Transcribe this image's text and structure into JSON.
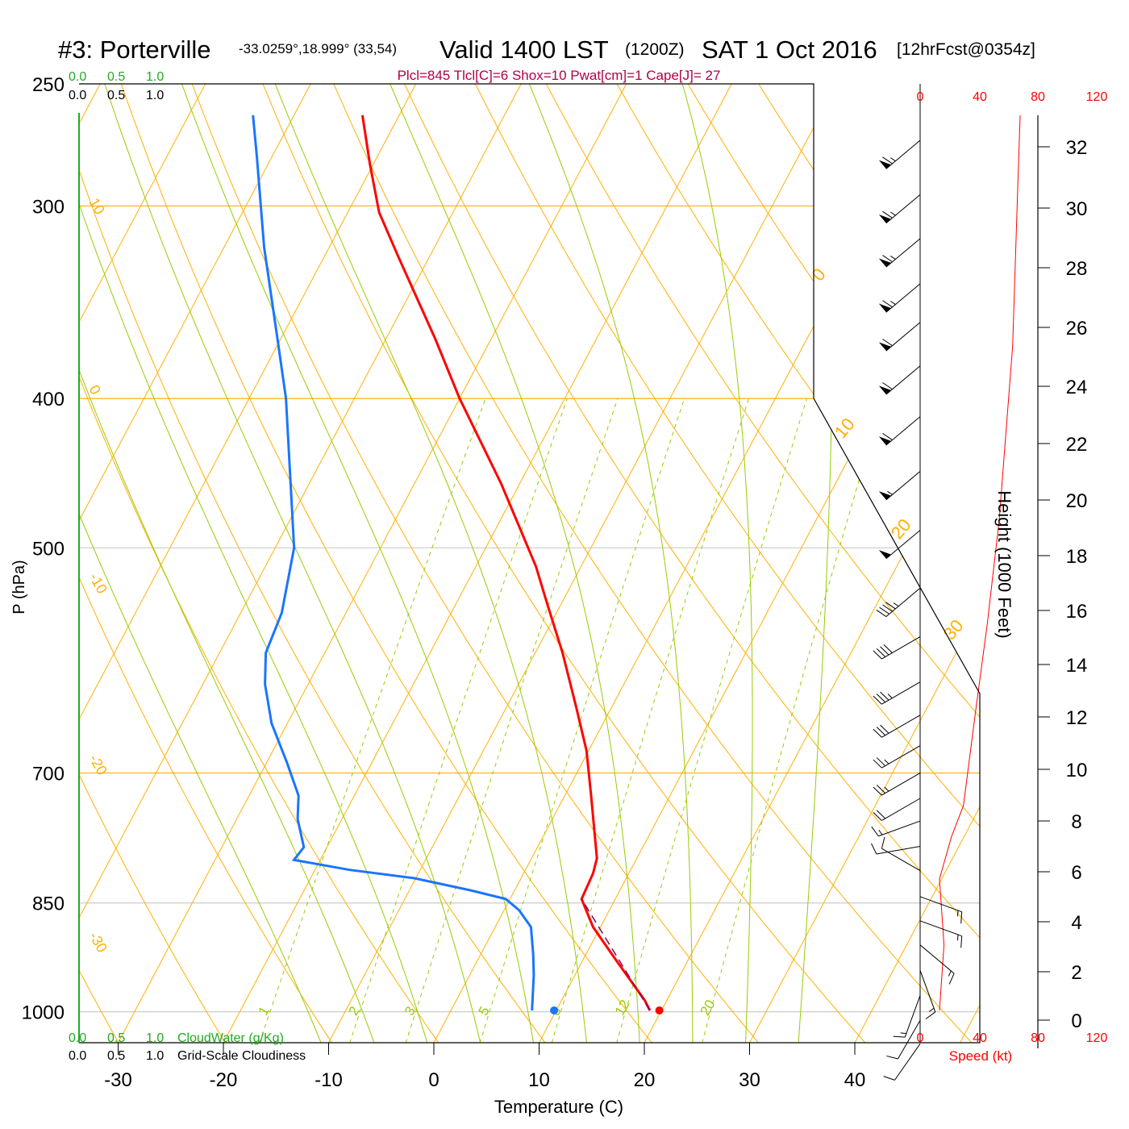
{
  "title": {
    "station": "#3: Porterville",
    "coords": "-33.0259°,18.999° (33,54)",
    "valid": "Valid 1400 LST",
    "zulu": "(1200Z)",
    "date": "SAT 1 Oct 2016",
    "forecast": "[12hrFcst@0354z]"
  },
  "indices": "Plcl=845 Tlcl[C]=6 Shox=10 Pwat[cm]=1 Cape[J]= 27",
  "colors": {
    "temp": "#ff0000",
    "dewpoint": "#1a75ff",
    "isotherm": "#ffb000",
    "moist": "#99cc00",
    "indices": "#b0004a",
    "cloud": "#22aa22"
  },
  "chart_data": {
    "type": "skew-t",
    "title": "#3: Porterville Valid 1400 LST SAT 1 Oct 2016",
    "xlabel": "Temperature (C)",
    "ylabel": "P (hPa)",
    "right_ylabel": "Height (1000 Feet)",
    "speed_label": "Speed (kt)",
    "x_ticks": [
      "-30",
      "-20",
      "-10",
      "0",
      "10",
      "20",
      "30",
      "40"
    ],
    "x_tick_values": [
      -30,
      -20,
      -10,
      0,
      10,
      20,
      30,
      40
    ],
    "p_ticks": [
      "250",
      "300",
      "400",
      "500",
      "700",
      "850",
      "1000"
    ],
    "p_tick_values": [
      250,
      300,
      400,
      500,
      700,
      850,
      1000
    ],
    "height_ticks": [
      "0",
      "2",
      "4",
      "6",
      "8",
      "10",
      "12",
      "14",
      "16",
      "18",
      "20",
      "22",
      "24",
      "26",
      "28",
      "30",
      "32"
    ],
    "speed_ticks": [
      "0",
      "40",
      "80",
      "120"
    ],
    "isotherm_labels_left": [
      "10",
      "0",
      "-10",
      "-20",
      "-30"
    ],
    "isotherm_labels_right": [
      "0",
      "10",
      "20",
      "30"
    ],
    "mixing_ratio_labels": [
      "1",
      "2",
      "3",
      "5",
      "8",
      "12",
      "20"
    ],
    "mixing_ratio_values": [
      1,
      2,
      3,
      5,
      8,
      12,
      20
    ],
    "cloud_scale_labels": [
      "0.0",
      "0.5",
      "1.0"
    ],
    "cloudwater_label": "CloudWater (g/Kg)",
    "cloudiness_label": "Grid-Scale Cloudiness",
    "temperature": [
      [
        262,
        -53.5
      ],
      [
        282,
        -50.3
      ],
      [
        303,
        -47.0
      ],
      [
        324,
        -42.9
      ],
      [
        366,
        -35.3
      ],
      [
        400,
        -30.0
      ],
      [
        454,
        -21.8
      ],
      [
        514,
        -14.3
      ],
      [
        545,
        -11.2
      ],
      [
        585,
        -7.4
      ],
      [
        634,
        -3.4
      ],
      [
        677,
        -0.2
      ],
      [
        724,
        2.5
      ],
      [
        795,
        6.2
      ],
      [
        813,
        6.6
      ],
      [
        845,
        6.8
      ],
      [
        881,
        9.3
      ],
      [
        924,
        13.0
      ],
      [
        983,
        17.9
      ],
      [
        998,
        18.9
      ]
    ],
    "dewpoint": [
      [
        262,
        -63.9
      ],
      [
        279,
        -61.4
      ],
      [
        319,
        -56.2
      ],
      [
        366,
        -50.3
      ],
      [
        400,
        -46.5
      ],
      [
        500,
        -38.2
      ],
      [
        551,
        -36.1
      ],
      [
        585,
        -35.6
      ],
      [
        613,
        -34.1
      ],
      [
        650,
        -31.5
      ],
      [
        690,
        -28.0
      ],
      [
        724,
        -25.3
      ],
      [
        750,
        -24.2
      ],
      [
        782,
        -22.2
      ],
      [
        797,
        -22.5
      ],
      [
        809,
        -16.7
      ],
      [
        819,
        -10.2
      ],
      [
        834,
        -4.2
      ],
      [
        845,
        -0.4
      ],
      [
        859,
        1.4
      ],
      [
        881,
        3.4
      ],
      [
        918,
        5.0
      ],
      [
        947,
        6.1
      ],
      [
        998,
        7.7
      ]
    ],
    "surface_temp": 19.8,
    "surface_dewpoint": 9.8,
    "parcel": [
      [
        998,
        18.9
      ],
      [
        845,
        6.8
      ]
    ],
    "wind_speed_profile": [
      [
        998,
        13
      ],
      [
        905,
        16
      ],
      [
        820,
        13
      ],
      [
        770,
        21
      ],
      [
        735,
        29
      ],
      [
        640,
        37
      ],
      [
        560,
        45
      ],
      [
        480,
        53
      ],
      [
        370,
        62
      ],
      [
        300,
        65
      ],
      [
        262,
        67
      ]
    ],
    "wind_barbs": [
      [
        272,
        230,
        65
      ],
      [
        295,
        230,
        65
      ],
      [
        315,
        230,
        64
      ],
      [
        337,
        230,
        63
      ],
      [
        357,
        230,
        62
      ],
      [
        381,
        230,
        60
      ],
      [
        411,
        230,
        58
      ],
      [
        446,
        230,
        55
      ],
      [
        487,
        230,
        50
      ],
      [
        531,
        230,
        45
      ],
      [
        571,
        240,
        40
      ],
      [
        611,
        240,
        35
      ],
      [
        642,
        240,
        30
      ],
      [
        672,
        240,
        27
      ],
      [
        700,
        240,
        24
      ],
      [
        727,
        240,
        20
      ],
      [
        752,
        250,
        15
      ],
      [
        781,
        260,
        12
      ],
      [
        810,
        300,
        10
      ],
      [
        842,
        110,
        14
      ],
      [
        873,
        110,
        16
      ],
      [
        905,
        130,
        15
      ],
      [
        940,
        160,
        14
      ],
      [
        976,
        200,
        13
      ],
      [
        1013,
        210,
        12
      ],
      [
        1049,
        215,
        10
      ]
    ]
  }
}
